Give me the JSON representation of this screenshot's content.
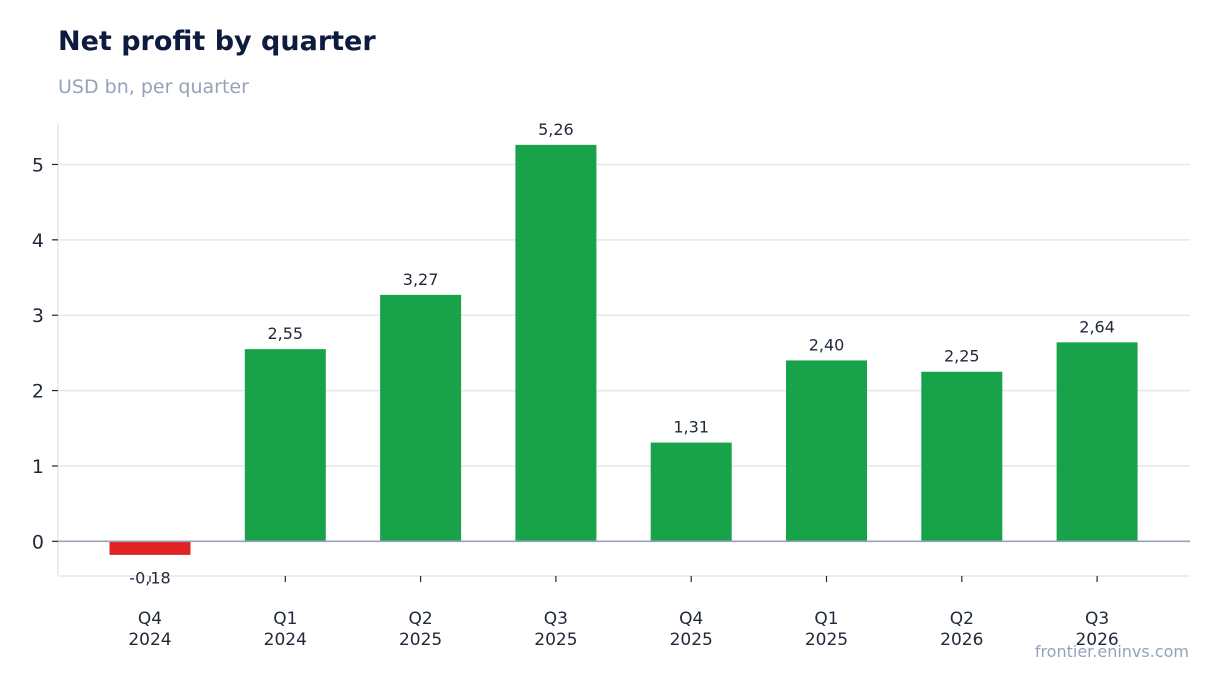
{
  "header": {
    "title": "Net profit by quarter",
    "subtitle": "USD bn, per quarter"
  },
  "footer": {
    "source": "frontier.eninvs.com"
  },
  "colors": {
    "positive": "#18a34a",
    "negative": "#e02424",
    "grid": "#e5e7eb",
    "zero_line": "#94a3b8"
  },
  "chart_data": {
    "type": "bar",
    "title": "Net profit by quarter",
    "subtitle": "USD bn, per quarter",
    "categories": [
      [
        "Q4",
        "2024"
      ],
      [
        "Q1",
        "2024"
      ],
      [
        "Q2",
        "2025"
      ],
      [
        "Q3",
        "2025"
      ],
      [
        "Q4",
        "2025"
      ],
      [
        "Q1",
        "2025"
      ],
      [
        "Q2",
        "2026"
      ],
      [
        "Q3",
        "2026"
      ]
    ],
    "values": [
      -0.18,
      2.55,
      3.27,
      5.26,
      1.31,
      2.4,
      2.25,
      2.64
    ],
    "value_labels": [
      "-0,18",
      "2,55",
      "3,27",
      "5,26",
      "1,31",
      "2,40",
      "2,25",
      "2,64"
    ],
    "y_ticks": [
      0,
      1,
      2,
      3,
      4,
      5
    ],
    "ylim": [
      -0.46,
      5.55
    ],
    "grid": true,
    "legend": "none",
    "xlabel": "",
    "ylabel": ""
  }
}
